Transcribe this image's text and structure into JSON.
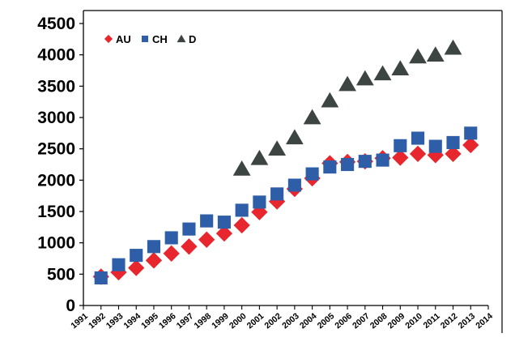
{
  "chart_data": {
    "type": "scatter",
    "title": "",
    "xlabel": "",
    "ylabel": "",
    "ylim": [
      0,
      4500
    ],
    "yticks": [
      0,
      500,
      1000,
      1500,
      2000,
      2500,
      3000,
      3500,
      4000,
      4500
    ],
    "xlim": [
      1991,
      2014
    ],
    "xticks": [
      "1991",
      "1992",
      "1993",
      "1994",
      "1995",
      "1996",
      "1997",
      "1998",
      "1999",
      "2000",
      "2001",
      "2002",
      "2003",
      "2004",
      "2005",
      "2006",
      "2007",
      "2008",
      "2009",
      "2010",
      "2011",
      "2012",
      "2013",
      "2014"
    ],
    "grid": false,
    "legend_position": "top-left",
    "series": [
      {
        "name": "AU",
        "marker": "diamond",
        "color": "#e8262e",
        "x": [
          1992,
          1993,
          1994,
          1995,
          1996,
          1997,
          1998,
          1999,
          2000,
          2001,
          2002,
          2003,
          2004,
          2005,
          2006,
          2007,
          2008,
          2009,
          2010,
          2011,
          2012,
          2013
        ],
        "values": [
          460,
          530,
          600,
          720,
          830,
          940,
          1050,
          1150,
          1280,
          1490,
          1660,
          1860,
          2030,
          2270,
          2290,
          2300,
          2350,
          2360,
          2420,
          2400,
          2420,
          2560
        ]
      },
      {
        "name": "CH",
        "marker": "square",
        "color": "#2f5ea8",
        "x": [
          1992,
          1993,
          1994,
          1995,
          1996,
          1997,
          1998,
          1999,
          2000,
          2001,
          2002,
          2003,
          2004,
          2005,
          2006,
          2007,
          2008,
          2009,
          2010,
          2011,
          2012,
          2013
        ],
        "values": [
          440,
          650,
          800,
          940,
          1080,
          1220,
          1350,
          1330,
          1520,
          1650,
          1780,
          1920,
          2100,
          2210,
          2250,
          2300,
          2320,
          2550,
          2670,
          2540,
          2600,
          2750
        ]
      },
      {
        "name": "D",
        "marker": "triangle",
        "color": "#3d4543",
        "x": [
          2000,
          2001,
          2002,
          2003,
          2004,
          2005,
          2006,
          2007,
          2008,
          2009,
          2010,
          2011,
          2012
        ],
        "values": [
          2180,
          2350,
          2500,
          2680,
          3000,
          3270,
          3530,
          3620,
          3700,
          3780,
          3970,
          4000,
          4110
        ]
      }
    ]
  }
}
